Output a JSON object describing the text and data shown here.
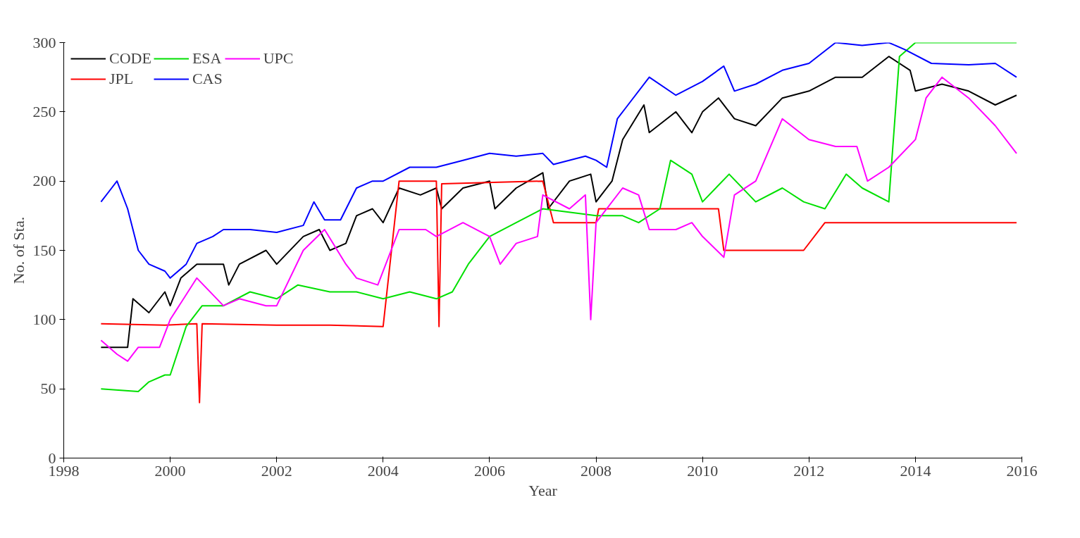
{
  "chart_data": {
    "type": "line",
    "xlabel": "Year",
    "ylabel": "No. of Sta.",
    "xlim": [
      1998,
      2016
    ],
    "ylim": [
      0,
      300
    ],
    "xticks": [
      1998,
      2000,
      2002,
      2004,
      2006,
      2008,
      2010,
      2012,
      2014,
      2016
    ],
    "yticks": [
      0,
      50,
      100,
      150,
      200,
      250,
      300
    ],
    "grid": false,
    "legend": "top left",
    "line_style": "solid",
    "marker": "none",
    "series": [
      {
        "name": "CODE",
        "color": "#000000",
        "x": [
          1998.7,
          1999.2,
          1999.3,
          1999.6,
          1999.9,
          2000.0,
          2000.2,
          2000.5,
          2001.0,
          2001.1,
          2001.3,
          2001.8,
          2002.0,
          2002.5,
          2002.8,
          2003.0,
          2003.3,
          2003.5,
          2003.8,
          2004.0,
          2004.3,
          2004.7,
          2005.0,
          2005.1,
          2005.5,
          2006.0,
          2006.1,
          2006.5,
          2007.0,
          2007.1,
          2007.5,
          2007.9,
          2008.0,
          2008.3,
          2008.5,
          2008.9,
          2009.0,
          2009.5,
          2009.8,
          2010.0,
          2010.3,
          2010.6,
          2011.0,
          2011.5,
          2012.0,
          2012.5,
          2013.0,
          2013.5,
          2013.9,
          2014.0,
          2014.5,
          2015.0,
          2015.5,
          2015.9
        ],
        "values": [
          80,
          80,
          115,
          105,
          120,
          110,
          130,
          140,
          140,
          125,
          140,
          150,
          140,
          160,
          165,
          150,
          155,
          175,
          180,
          170,
          195,
          190,
          195,
          180,
          195,
          200,
          180,
          195,
          206,
          180,
          200,
          205,
          185,
          200,
          230,
          255,
          235,
          250,
          235,
          250,
          260,
          245,
          240,
          260,
          265,
          275,
          275,
          290,
          280,
          265,
          270,
          265,
          255,
          262
        ]
      },
      {
        "name": "JPL",
        "color": "#ff0000",
        "x": [
          1998.7,
          1999.9,
          2000.5,
          2000.55,
          2000.6,
          2002.0,
          2003.0,
          2004.0,
          2004.3,
          2005.0,
          2005.05,
          2005.1,
          2007.0,
          2007.2,
          2008.0,
          2008.05,
          2010.3,
          2010.4,
          2011.9,
          2012.3,
          2015.9
        ],
        "values": [
          97,
          96,
          97,
          40,
          97,
          96,
          96,
          95,
          200,
          200,
          95,
          198,
          200,
          170,
          170,
          180,
          180,
          150,
          150,
          170,
          170
        ]
      },
      {
        "name": "ESA",
        "color": "#00e000",
        "x": [
          1998.7,
          1999.4,
          1999.6,
          1999.9,
          2000.0,
          2000.3,
          2000.6,
          2001.0,
          2001.5,
          2002.0,
          2002.4,
          2003.0,
          2003.5,
          2004.0,
          2004.5,
          2005.0,
          2005.3,
          2005.6,
          2006.0,
          2006.5,
          2007.0,
          2008.0,
          2008.5,
          2008.8,
          2009.2,
          2009.4,
          2009.8,
          2010.0,
          2010.5,
          2011.0,
          2011.5,
          2011.9,
          2012.3,
          2012.7,
          2013.0,
          2013.5,
          2013.7,
          2014.0,
          2015.0,
          2015.9
        ],
        "values": [
          50,
          48,
          55,
          60,
          60,
          95,
          110,
          110,
          120,
          115,
          125,
          120,
          120,
          115,
          120,
          115,
          120,
          140,
          160,
          170,
          180,
          175,
          175,
          170,
          180,
          215,
          205,
          185,
          205,
          185,
          195,
          185,
          180,
          205,
          195,
          185,
          290,
          300,
          300,
          300
        ]
      },
      {
        "name": "CAS",
        "color": "#0000ff",
        "x": [
          1998.7,
          1998.9,
          1999.0,
          1999.2,
          1999.4,
          1999.6,
          1999.9,
          2000.0,
          2000.3,
          2000.5,
          2000.8,
          2001.0,
          2001.5,
          2002.0,
          2002.5,
          2002.7,
          2002.9,
          2003.2,
          2003.5,
          2003.8,
          2004.0,
          2004.5,
          2005.0,
          2005.5,
          2006.0,
          2006.5,
          2007.0,
          2007.2,
          2007.8,
          2008.0,
          2008.2,
          2008.4,
          2008.6,
          2009.0,
          2009.5,
          2010.0,
          2010.4,
          2010.6,
          2011.0,
          2011.5,
          2012.0,
          2012.5,
          2013.0,
          2013.5,
          2013.8,
          2014.3,
          2015.0,
          2015.5,
          2015.9
        ],
        "values": [
          185,
          195,
          200,
          180,
          150,
          140,
          135,
          130,
          140,
          155,
          160,
          165,
          165,
          163,
          168,
          185,
          172,
          172,
          195,
          200,
          200,
          210,
          210,
          215,
          220,
          218,
          220,
          212,
          218,
          215,
          210,
          245,
          255,
          275,
          262,
          272,
          283,
          265,
          270,
          280,
          285,
          300,
          298,
          300,
          295,
          285,
          284,
          285,
          275
        ]
      },
      {
        "name": "UPC",
        "color": "#ff00ff",
        "x": [
          1998.7,
          1999.0,
          1999.2,
          1999.4,
          1999.8,
          2000.0,
          2000.5,
          2001.0,
          2001.3,
          2001.8,
          2002.0,
          2002.5,
          2002.9,
          2003.3,
          2003.5,
          2003.9,
          2004.3,
          2004.8,
          2005.0,
          2005.5,
          2006.0,
          2006.2,
          2006.5,
          2006.9,
          2007.0,
          2007.5,
          2007.8,
          2007.9,
          2008.0,
          2008.5,
          2008.8,
          2009.0,
          2009.5,
          2009.8,
          2010.0,
          2010.4,
          2010.6,
          2011.0,
          2011.5,
          2012.0,
          2012.5,
          2012.9,
          2013.1,
          2013.5,
          2014.0,
          2014.2,
          2014.5,
          2015.0,
          2015.5,
          2015.9
        ],
        "values": [
          85,
          75,
          70,
          80,
          80,
          100,
          130,
          110,
          115,
          110,
          110,
          150,
          165,
          140,
          130,
          125,
          165,
          165,
          160,
          170,
          160,
          140,
          155,
          160,
          190,
          180,
          190,
          100,
          170,
          195,
          190,
          165,
          165,
          170,
          160,
          145,
          190,
          200,
          245,
          230,
          225,
          225,
          200,
          210,
          230,
          260,
          275,
          260,
          240,
          220
        ]
      }
    ]
  }
}
